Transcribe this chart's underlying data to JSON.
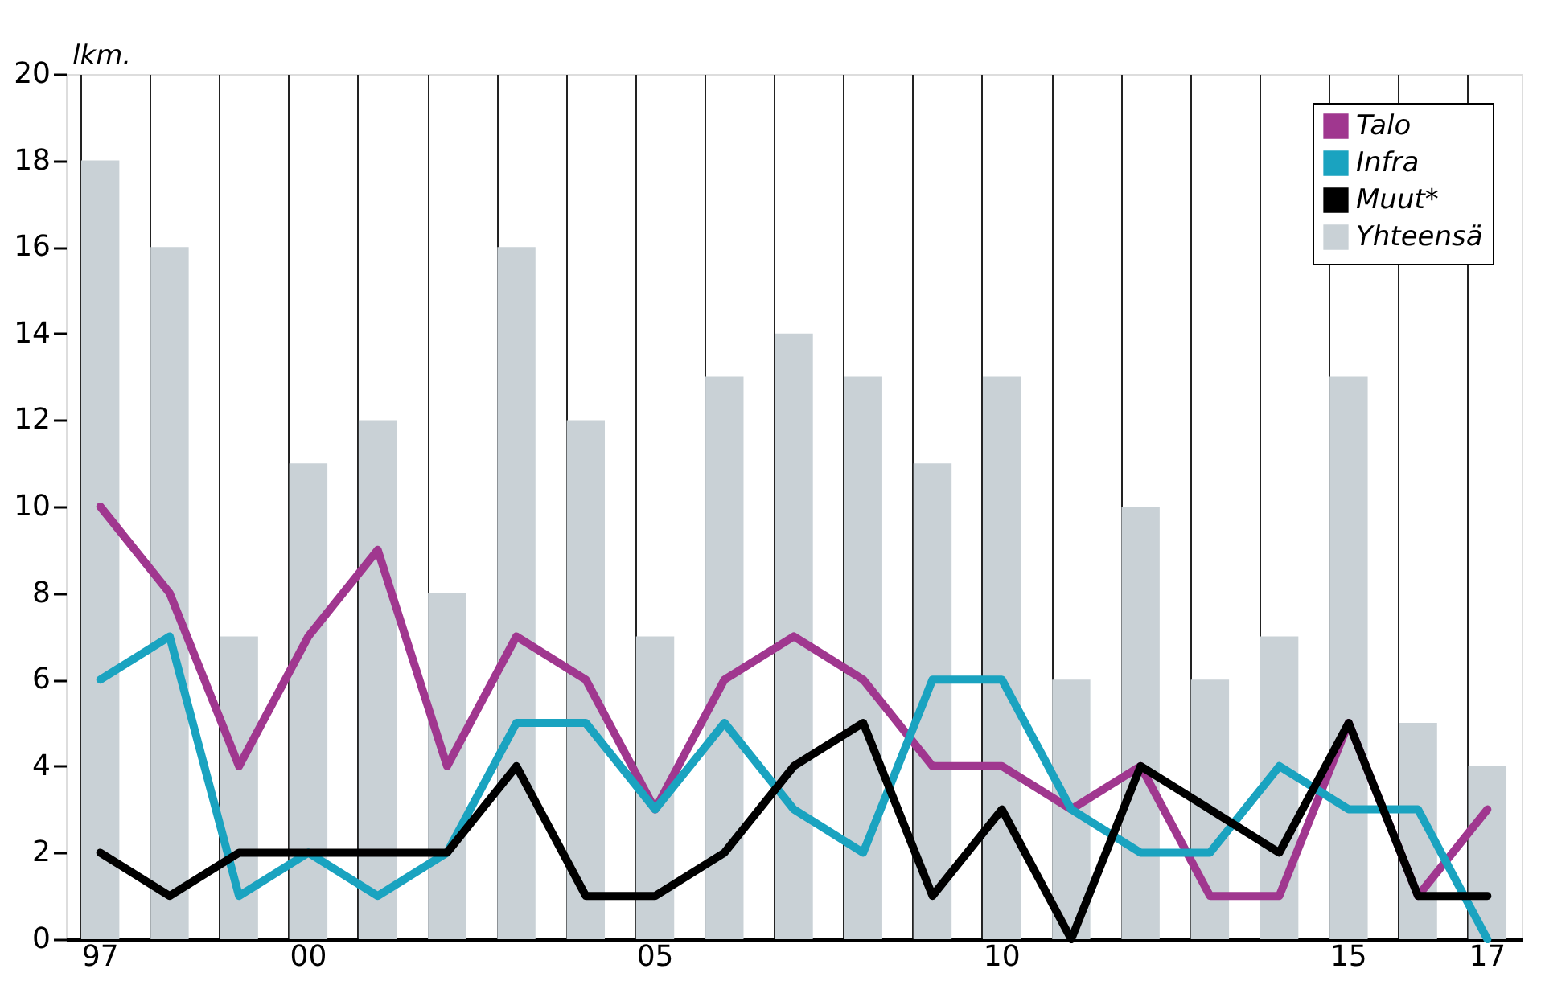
{
  "chart_data": {
    "type": "line",
    "ylabel": "lkm.",
    "categories": [
      "97",
      null,
      null,
      "00",
      null,
      null,
      null,
      null,
      "05",
      null,
      null,
      null,
      null,
      "10",
      null,
      null,
      null,
      null,
      "15",
      null,
      "17"
    ],
    "ylim": [
      0,
      20
    ],
    "yticks": [
      0,
      2,
      4,
      6,
      8,
      10,
      12,
      14,
      16,
      18,
      20
    ],
    "grid": "x",
    "legend": "top right",
    "series": [
      {
        "name": "Talo",
        "color": "#a0378f",
        "values": [
          10,
          8,
          4,
          7,
          9,
          4,
          7,
          6,
          3,
          6,
          7,
          6,
          4,
          4,
          3,
          4,
          1,
          1,
          5,
          1,
          3
        ]
      },
      {
        "name": "Infra",
        "color": "#1aa3c0",
        "values": [
          6,
          7,
          1,
          2,
          1,
          2,
          5,
          5,
          3,
          5,
          3,
          2,
          6,
          6,
          3,
          2,
          2,
          4,
          3,
          3,
          0
        ]
      },
      {
        "name": "Muut*",
        "color": "#000000",
        "values": [
          2,
          1,
          2,
          2,
          2,
          2,
          4,
          1,
          1,
          2,
          4,
          5,
          1,
          3,
          0,
          4,
          3,
          2,
          5,
          1,
          1
        ]
      },
      {
        "name": "Yhteensä",
        "type": "bar",
        "color": "#c9d1d6",
        "values": [
          18,
          16,
          7,
          11,
          12,
          8,
          16,
          12,
          7,
          13,
          14,
          13,
          11,
          13,
          6,
          10,
          6,
          7,
          13,
          5,
          4
        ]
      }
    ]
  }
}
